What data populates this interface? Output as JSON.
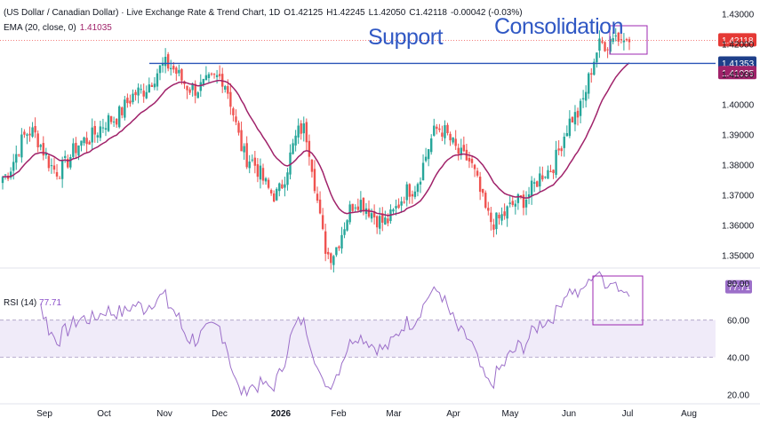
{
  "header": {
    "title": "(US Dollar / Canadian Dollar) · Live Exchange Rate & Trend Chart, 1D",
    "open_label": "O",
    "open": "1.42125",
    "high_label": "H",
    "high": "1.42245",
    "low_label": "L",
    "low": "1.42050",
    "close_label": "C",
    "close": "1.42118",
    "change": "-0.00042 (-0.03%)",
    "ema_label": "EMA (20, close, 0)",
    "ema_value": "1.41035"
  },
  "annotations": {
    "support": "Support",
    "consolidation": "Consolidation"
  },
  "price_tags": {
    "last": "1.42118",
    "support": "1.41353",
    "ema": "1.41035"
  },
  "rsi": {
    "label": "RSI (14)",
    "value": "77.71",
    "upper_band": 60,
    "lower_band": 40
  },
  "colors": {
    "up": "#26a69a",
    "down": "#ef5350",
    "ema": "#a0226a",
    "rsi": "#9c6fc9",
    "support_line": "#2a55b8",
    "annotation": "#3058c4",
    "box": "#9c27b0"
  },
  "chart_data": [
    {
      "type": "candlestick",
      "title": "(US Dollar / Canadian Dollar) · Live Exchange Rate & Trend Chart, 1D",
      "y_ticks": [
        "1.43000",
        "1.42000",
        "1.41000",
        "1.40000",
        "1.39000",
        "1.38000",
        "1.37000",
        "1.36000",
        "1.35000"
      ],
      "x_ticks": [
        "Sep",
        "Oct",
        "Nov",
        "Dec",
        "2026",
        "Feb",
        "Mar",
        "Apr",
        "May",
        "Jun",
        "Jul",
        "Aug"
      ],
      "ylim": [
        1.344,
        1.431
      ],
      "support_level": 1.41353,
      "close_path": [
        {
          "month": "Aug start",
          "close": 1.376
        },
        {
          "month": "Aug mid",
          "close": 1.391
        },
        {
          "month": "Sep start",
          "close": 1.378
        },
        {
          "month": "Sep mid",
          "close": 1.388
        },
        {
          "month": "Oct start",
          "close": 1.395
        },
        {
          "month": "Oct mid",
          "close": 1.404
        },
        {
          "month": "Nov start",
          "close": 1.413
        },
        {
          "month": "Nov mid",
          "close": 1.405
        },
        {
          "month": "Dec start",
          "close": 1.409
        },
        {
          "month": "Dec mid",
          "close": 1.382
        },
        {
          "month": "Jan start",
          "close": 1.37
        },
        {
          "month": "Jan mid",
          "close": 1.392
        },
        {
          "month": "Feb start",
          "close": 1.35
        },
        {
          "month": "Feb mid",
          "close": 1.368
        },
        {
          "month": "Mar start",
          "close": 1.361
        },
        {
          "month": "Mar mid",
          "close": 1.372
        },
        {
          "month": "Apr start",
          "close": 1.392
        },
        {
          "month": "Apr mid",
          "close": 1.382
        },
        {
          "month": "May start",
          "close": 1.361
        },
        {
          "month": "May mid",
          "close": 1.368
        },
        {
          "month": "Jun start",
          "close": 1.378
        },
        {
          "month": "Jun mid",
          "close": 1.396
        },
        {
          "month": "Jun end",
          "close": 1.42
        },
        {
          "month": "Jul start",
          "close": 1.42118
        }
      ]
    },
    {
      "type": "line",
      "name": "RSI (14)",
      "y_ticks": [
        "80.00",
        "60.00",
        "40.00",
        "20.00"
      ],
      "ylim": [
        15,
        88
      ],
      "bands": [
        40,
        60
      ],
      "last_value": 77.71
    }
  ]
}
